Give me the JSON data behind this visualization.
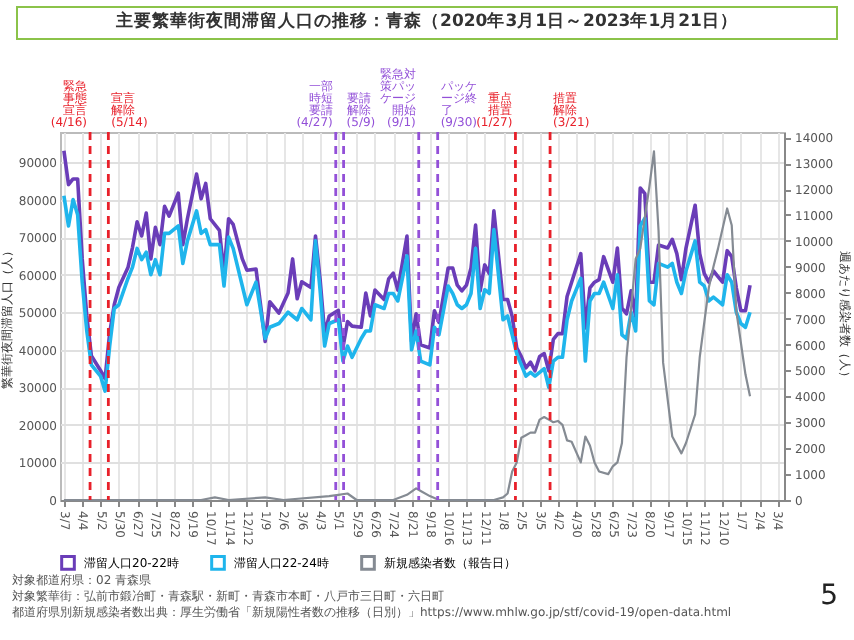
{
  "chart_data": {
    "type": "line",
    "title": "主要繁華街夜間滞留人口の推移：青森（2020年3月1日～2023年1月21日）",
    "ylabel": "繁華街夜間滞留人口（人）",
    "y2label": "週あたり感染者数（人）",
    "x": [
      "2020-03-07",
      "2020-03-14",
      "2020-03-21",
      "2020-03-28",
      "2020-04-04",
      "2020-04-11",
      "2020-04-18",
      "2020-05-02",
      "2020-05-09",
      "2020-05-16",
      "2020-05-23",
      "2020-05-30",
      "2020-06-13",
      "2020-06-20",
      "2020-06-27",
      "2020-07-04",
      "2020-07-11",
      "2020-07-18",
      "2020-07-25",
      "2020-08-01",
      "2020-08-08",
      "2020-08-15",
      "2020-08-29",
      "2020-09-05",
      "2020-09-12",
      "2020-09-26",
      "2020-10-03",
      "2020-10-10",
      "2020-10-17",
      "2020-10-31",
      "2020-11-07",
      "2020-11-14",
      "2020-11-21",
      "2020-12-05",
      "2020-12-12",
      "2020-12-26",
      "2021-01-09",
      "2021-01-16",
      "2021-01-30",
      "2021-02-13",
      "2021-02-20",
      "2021-02-27",
      "2021-03-06",
      "2021-03-20",
      "2021-03-27",
      "2021-04-03",
      "2021-04-10",
      "2021-04-17",
      "2021-05-01",
      "2021-05-08",
      "2021-05-15",
      "2021-05-22",
      "2021-06-05",
      "2021-06-12",
      "2021-06-19",
      "2021-06-26",
      "2021-07-10",
      "2021-07-17",
      "2021-07-24",
      "2021-07-31",
      "2021-08-14",
      "2021-08-21",
      "2021-08-28",
      "2021-09-04",
      "2021-09-18",
      "2021-09-25",
      "2021-10-02",
      "2021-10-16",
      "2021-10-23",
      "2021-10-30",
      "2021-11-06",
      "2021-11-13",
      "2021-11-20",
      "2021-11-27",
      "2021-12-04",
      "2021-12-11",
      "2021-12-18",
      "2021-12-25",
      "2022-01-08",
      "2022-01-15",
      "2022-01-22",
      "2022-01-29",
      "2022-02-05",
      "2022-02-12",
      "2022-02-19",
      "2022-02-26",
      "2022-03-05",
      "2022-03-12",
      "2022-03-19",
      "2022-03-26",
      "2022-04-02",
      "2022-04-09",
      "2022-04-16",
      "2022-04-23",
      "2022-05-07",
      "2022-05-14",
      "2022-05-21",
      "2022-05-28",
      "2022-06-04",
      "2022-06-11",
      "2022-06-25",
      "2022-07-02",
      "2022-07-09",
      "2022-07-16",
      "2022-07-23",
      "2022-07-30",
      "2022-08-06",
      "2022-08-13",
      "2022-08-20",
      "2022-08-27",
      "2022-09-03",
      "2022-09-17",
      "2022-09-24",
      "2022-10-01",
      "2022-10-08",
      "2022-10-15",
      "2022-10-29",
      "2022-11-05",
      "2022-11-12",
      "2022-11-19",
      "2022-11-26",
      "2022-12-03",
      "2022-12-10",
      "2022-12-17",
      "2022-12-24",
      "2022-12-31",
      "2023-01-07",
      "2023-01-14",
      "2023-01-21"
    ],
    "series": [
      {
        "name": "滞留人口20-22時",
        "color": "#6a3db8",
        "values": [
          93000,
          84000,
          85500,
          85500,
          64200,
          49000,
          38400,
          34500,
          32300,
          44400,
          52000,
          56600,
          61900,
          67300,
          74100,
          70300,
          76400,
          64200,
          72600,
          68000,
          78200,
          75600,
          81700,
          68000,
          74900,
          86800,
          80200,
          84300,
          74900,
          71800,
          60400,
          74900,
          73400,
          64200,
          61200,
          61500,
          42200,
          52800,
          49800,
          55100,
          64200,
          53600,
          58100,
          56600,
          70300,
          58900,
          44400,
          49000,
          50500,
          40600,
          47500,
          46300,
          46000,
          55100,
          49000,
          55900,
          53400,
          58900,
          60400,
          55900,
          70300,
          42200,
          49600,
          41300,
          40500,
          50400,
          47300,
          61800,
          61800,
          57200,
          55700,
          57200,
          61800,
          73200,
          55700,
          62600,
          60300,
          77000,
          53400,
          53400,
          48900,
          40500,
          38200,
          35200,
          36700,
          34400,
          38200,
          39000,
          34400,
          42800,
          44300,
          44300,
          54200,
          58000,
          65600,
          45800,
          56500,
          58000,
          58700,
          64800,
          58000,
          67100,
          51100,
          49600,
          55700,
          48900,
          83100,
          81600,
          58000,
          58000,
          67900,
          67100,
          69400,
          65600,
          58700,
          67100,
          78500,
          65600,
          60300,
          58000,
          61000,
          59500,
          58000,
          66400,
          64800,
          56500,
          50400,
          50400,
          57200
        ]
      },
      {
        "name": "滞留人口22-24時",
        "color": "#1fb5ec",
        "values": [
          81000,
          73000,
          80000,
          76000,
          58000,
          45000,
          36000,
          33000,
          29000,
          41000,
          51000,
          52000,
          59000,
          62000,
          67000,
          64000,
          66000,
          60000,
          64000,
          60000,
          71000,
          71000,
          73000,
          63000,
          69000,
          77000,
          71000,
          72000,
          68000,
          68000,
          57000,
          70000,
          67000,
          57000,
          52000,
          58000,
          43000,
          46000,
          47000,
          50000,
          49000,
          48000,
          51000,
          48000,
          69000,
          56000,
          41000,
          47000,
          48000,
          37000,
          41000,
          38000,
          43000,
          45000,
          45000,
          52000,
          51000,
          55000,
          55000,
          53000,
          65000,
          40000,
          45000,
          37000,
          36000,
          46000,
          44000,
          57000,
          55000,
          52000,
          51000,
          52000,
          55000,
          67000,
          51000,
          56000,
          55000,
          72000,
          48000,
          49000,
          44000,
          39000,
          36000,
          33000,
          34000,
          33000,
          34000,
          35000,
          30000,
          37000,
          38000,
          38000,
          48000,
          53000,
          59000,
          37000,
          53000,
          55000,
          55000,
          58000,
          51000,
          60000,
          44000,
          43000,
          50000,
          45000,
          73000,
          75000,
          53000,
          52000,
          63000,
          62000,
          63000,
          58000,
          55000,
          61000,
          69000,
          58000,
          57000,
          53000,
          54000,
          53000,
          52000,
          60000,
          58000,
          50000,
          47000,
          46000,
          50000
        ]
      },
      {
        "name": "新規感染者数（報告日）",
        "color": "#858b93",
        "axis": "y2",
        "x": [
          "2020-03-07",
          "2020-10-03",
          "2020-10-24",
          "2020-11-14",
          "2021-01-09",
          "2021-02-06",
          "2021-04-17",
          "2021-05-01",
          "2021-05-15",
          "2021-05-29",
          "2021-07-24",
          "2021-08-14",
          "2021-08-28",
          "2021-09-04",
          "2021-09-18",
          "2021-10-02",
          "2021-12-25",
          "2022-01-08",
          "2022-01-15",
          "2022-01-22",
          "2022-01-29",
          "2022-02-05",
          "2022-02-12",
          "2022-02-19",
          "2022-02-26",
          "2022-03-05",
          "2022-03-12",
          "2022-03-19",
          "2022-03-26",
          "2022-04-02",
          "2022-04-09",
          "2022-04-16",
          "2022-04-23",
          "2022-05-07",
          "2022-05-14",
          "2022-05-21",
          "2022-05-28",
          "2022-06-04",
          "2022-06-18",
          "2022-06-25",
          "2022-07-02",
          "2022-07-09",
          "2022-07-16",
          "2022-07-30",
          "2022-08-06",
          "2022-08-20",
          "2022-08-27",
          "2022-09-03",
          "2022-09-10",
          "2022-09-24",
          "2022-10-08",
          "2022-10-15",
          "2022-10-29",
          "2022-11-05",
          "2022-11-19",
          "2022-11-26",
          "2022-12-03",
          "2022-12-17",
          "2022-12-24",
          "2022-12-31",
          "2023-01-14",
          "2023-01-21"
        ],
        "values": [
          0,
          0,
          100,
          0,
          100,
          0,
          150,
          200,
          250,
          0,
          0,
          200,
          450,
          350,
          150,
          0,
          0,
          100,
          250,
          1100,
          1450,
          2400,
          2500,
          2600,
          2600,
          3100,
          3200,
          3100,
          3000,
          3050,
          2900,
          2300,
          2250,
          1450,
          2450,
          2100,
          1450,
          1100,
          1000,
          1300,
          1450,
          2200,
          5500,
          9300,
          9700,
          12100,
          13450,
          10400,
          5300,
          2450,
          1800,
          2200,
          3300,
          5500,
          8200,
          9000,
          9700,
          11250,
          10600,
          7300,
          4850,
          4000
        ]
      }
    ],
    "xlim": [
      "2020-03-01",
      "2023-03-14"
    ],
    "xticks": [
      {
        "value": "2020-03-07",
        "label": "3/7"
      },
      {
        "value": "2020-04-04",
        "label": "4/4"
      },
      {
        "value": "2020-05-02",
        "label": "5/2"
      },
      {
        "value": "2020-05-30",
        "label": "5/30"
      },
      {
        "value": "2020-06-27",
        "label": "6/27"
      },
      {
        "value": "2020-07-25",
        "label": "7/25"
      },
      {
        "value": "2020-08-22",
        "label": "8/22"
      },
      {
        "value": "2020-09-19",
        "label": "9/19"
      },
      {
        "value": "2020-10-17",
        "label": "10/17"
      },
      {
        "value": "2020-11-14",
        "label": "11/14"
      },
      {
        "value": "2020-12-12",
        "label": "12/12"
      },
      {
        "value": "2021-01-09",
        "label": "1/9"
      },
      {
        "value": "2021-02-06",
        "label": "2/6"
      },
      {
        "value": "2021-03-06",
        "label": "3/6"
      },
      {
        "value": "2021-04-03",
        "label": "4/3"
      },
      {
        "value": "2021-05-01",
        "label": "5/1"
      },
      {
        "value": "2021-05-29",
        "label": "5/29"
      },
      {
        "value": "2021-06-26",
        "label": "6/26"
      },
      {
        "value": "2021-07-24",
        "label": "7/24"
      },
      {
        "value": "2021-08-21",
        "label": "8/21"
      },
      {
        "value": "2021-09-18",
        "label": "9/18"
      },
      {
        "value": "2021-10-16",
        "label": "10/16"
      },
      {
        "value": "2021-11-13",
        "label": "11/13"
      },
      {
        "value": "2021-12-11",
        "label": "12/11"
      },
      {
        "value": "2022-01-08",
        "label": "1/8"
      },
      {
        "value": "2022-02-05",
        "label": "2/5"
      },
      {
        "value": "2022-03-05",
        "label": "3/5"
      },
      {
        "value": "2022-04-02",
        "label": "4/2"
      },
      {
        "value": "2022-04-30",
        "label": "4/30"
      },
      {
        "value": "2022-05-28",
        "label": "5/28"
      },
      {
        "value": "2022-06-25",
        "label": "6/25"
      },
      {
        "value": "2022-07-23",
        "label": "7/23"
      },
      {
        "value": "2022-08-20",
        "label": "8/20"
      },
      {
        "value": "2022-09-17",
        "label": "9/17"
      },
      {
        "value": "2022-10-15",
        "label": "10/15"
      },
      {
        "value": "2022-11-12",
        "label": "11/12"
      },
      {
        "value": "2022-12-10",
        "label": "12/10"
      },
      {
        "value": "2023-01-07",
        "label": "1/7"
      },
      {
        "value": "2023-02-04",
        "label": "2/4"
      },
      {
        "value": "2023-03-04",
        "label": "3/4"
      }
    ],
    "ylim": [
      0,
      98000
    ],
    "yticks": [
      0,
      10000,
      20000,
      30000,
      40000,
      50000,
      60000,
      70000,
      80000,
      90000
    ],
    "y2lim": [
      0,
      14200
    ],
    "y2ticks": [
      0,
      1000,
      2000,
      3000,
      4000,
      5000,
      6000,
      7000,
      8000,
      9000,
      10000,
      11000,
      12000,
      13000,
      14000
    ],
    "ref_lines": [
      {
        "axis": "x",
        "value": "2020-04-16",
        "label": "緊急事態宣言(4/16)",
        "color": "#e8202a",
        "line_style": "dashed"
      },
      {
        "axis": "x",
        "value": "2020-05-14",
        "label": "宣言解除(5/14)",
        "color": "#e8202a",
        "line_style": "dashed"
      },
      {
        "axis": "x",
        "value": "2021-04-27",
        "label": "一部時短要請(4/27)",
        "color": "#9350d8",
        "line_style": "dashed"
      },
      {
        "axis": "x",
        "value": "2021-05-09",
        "label": "要請解除(5/9)",
        "color": "#9350d8",
        "line_style": "dashed"
      },
      {
        "axis": "x",
        "value": "2021-09-01",
        "label": "緊急対策パッケージ開始(9/1)",
        "color": "#9350d8",
        "line_style": "dashed"
      },
      {
        "axis": "x",
        "value": "2021-09-30",
        "label": "パッケージ終了(9/30)",
        "color": "#9350d8",
        "line_style": "dashed"
      },
      {
        "axis": "x",
        "value": "2022-01-27",
        "label": "重点措置(1/27)",
        "color": "#e8202a",
        "line_style": "dashed"
      },
      {
        "axis": "x",
        "value": "2022-03-21",
        "label": "措置解除(3/21)",
        "color": "#e8202a",
        "line_style": "dashed"
      }
    ],
    "grid": true,
    "legend": "bottom",
    "annotations": [
      "対象都道府県：02 青森県",
      "対象繁華街：弘前市鍛冶町・青森駅・新町・青森市本町・八戸市三日町・六日町",
      "都道府県別新規感染者数出典：厚生労働省「新規陽性者数の推移（日別）」https://www.mhlw.go.jp/stf/covid-19/open-data.html",
      "5"
    ]
  }
}
